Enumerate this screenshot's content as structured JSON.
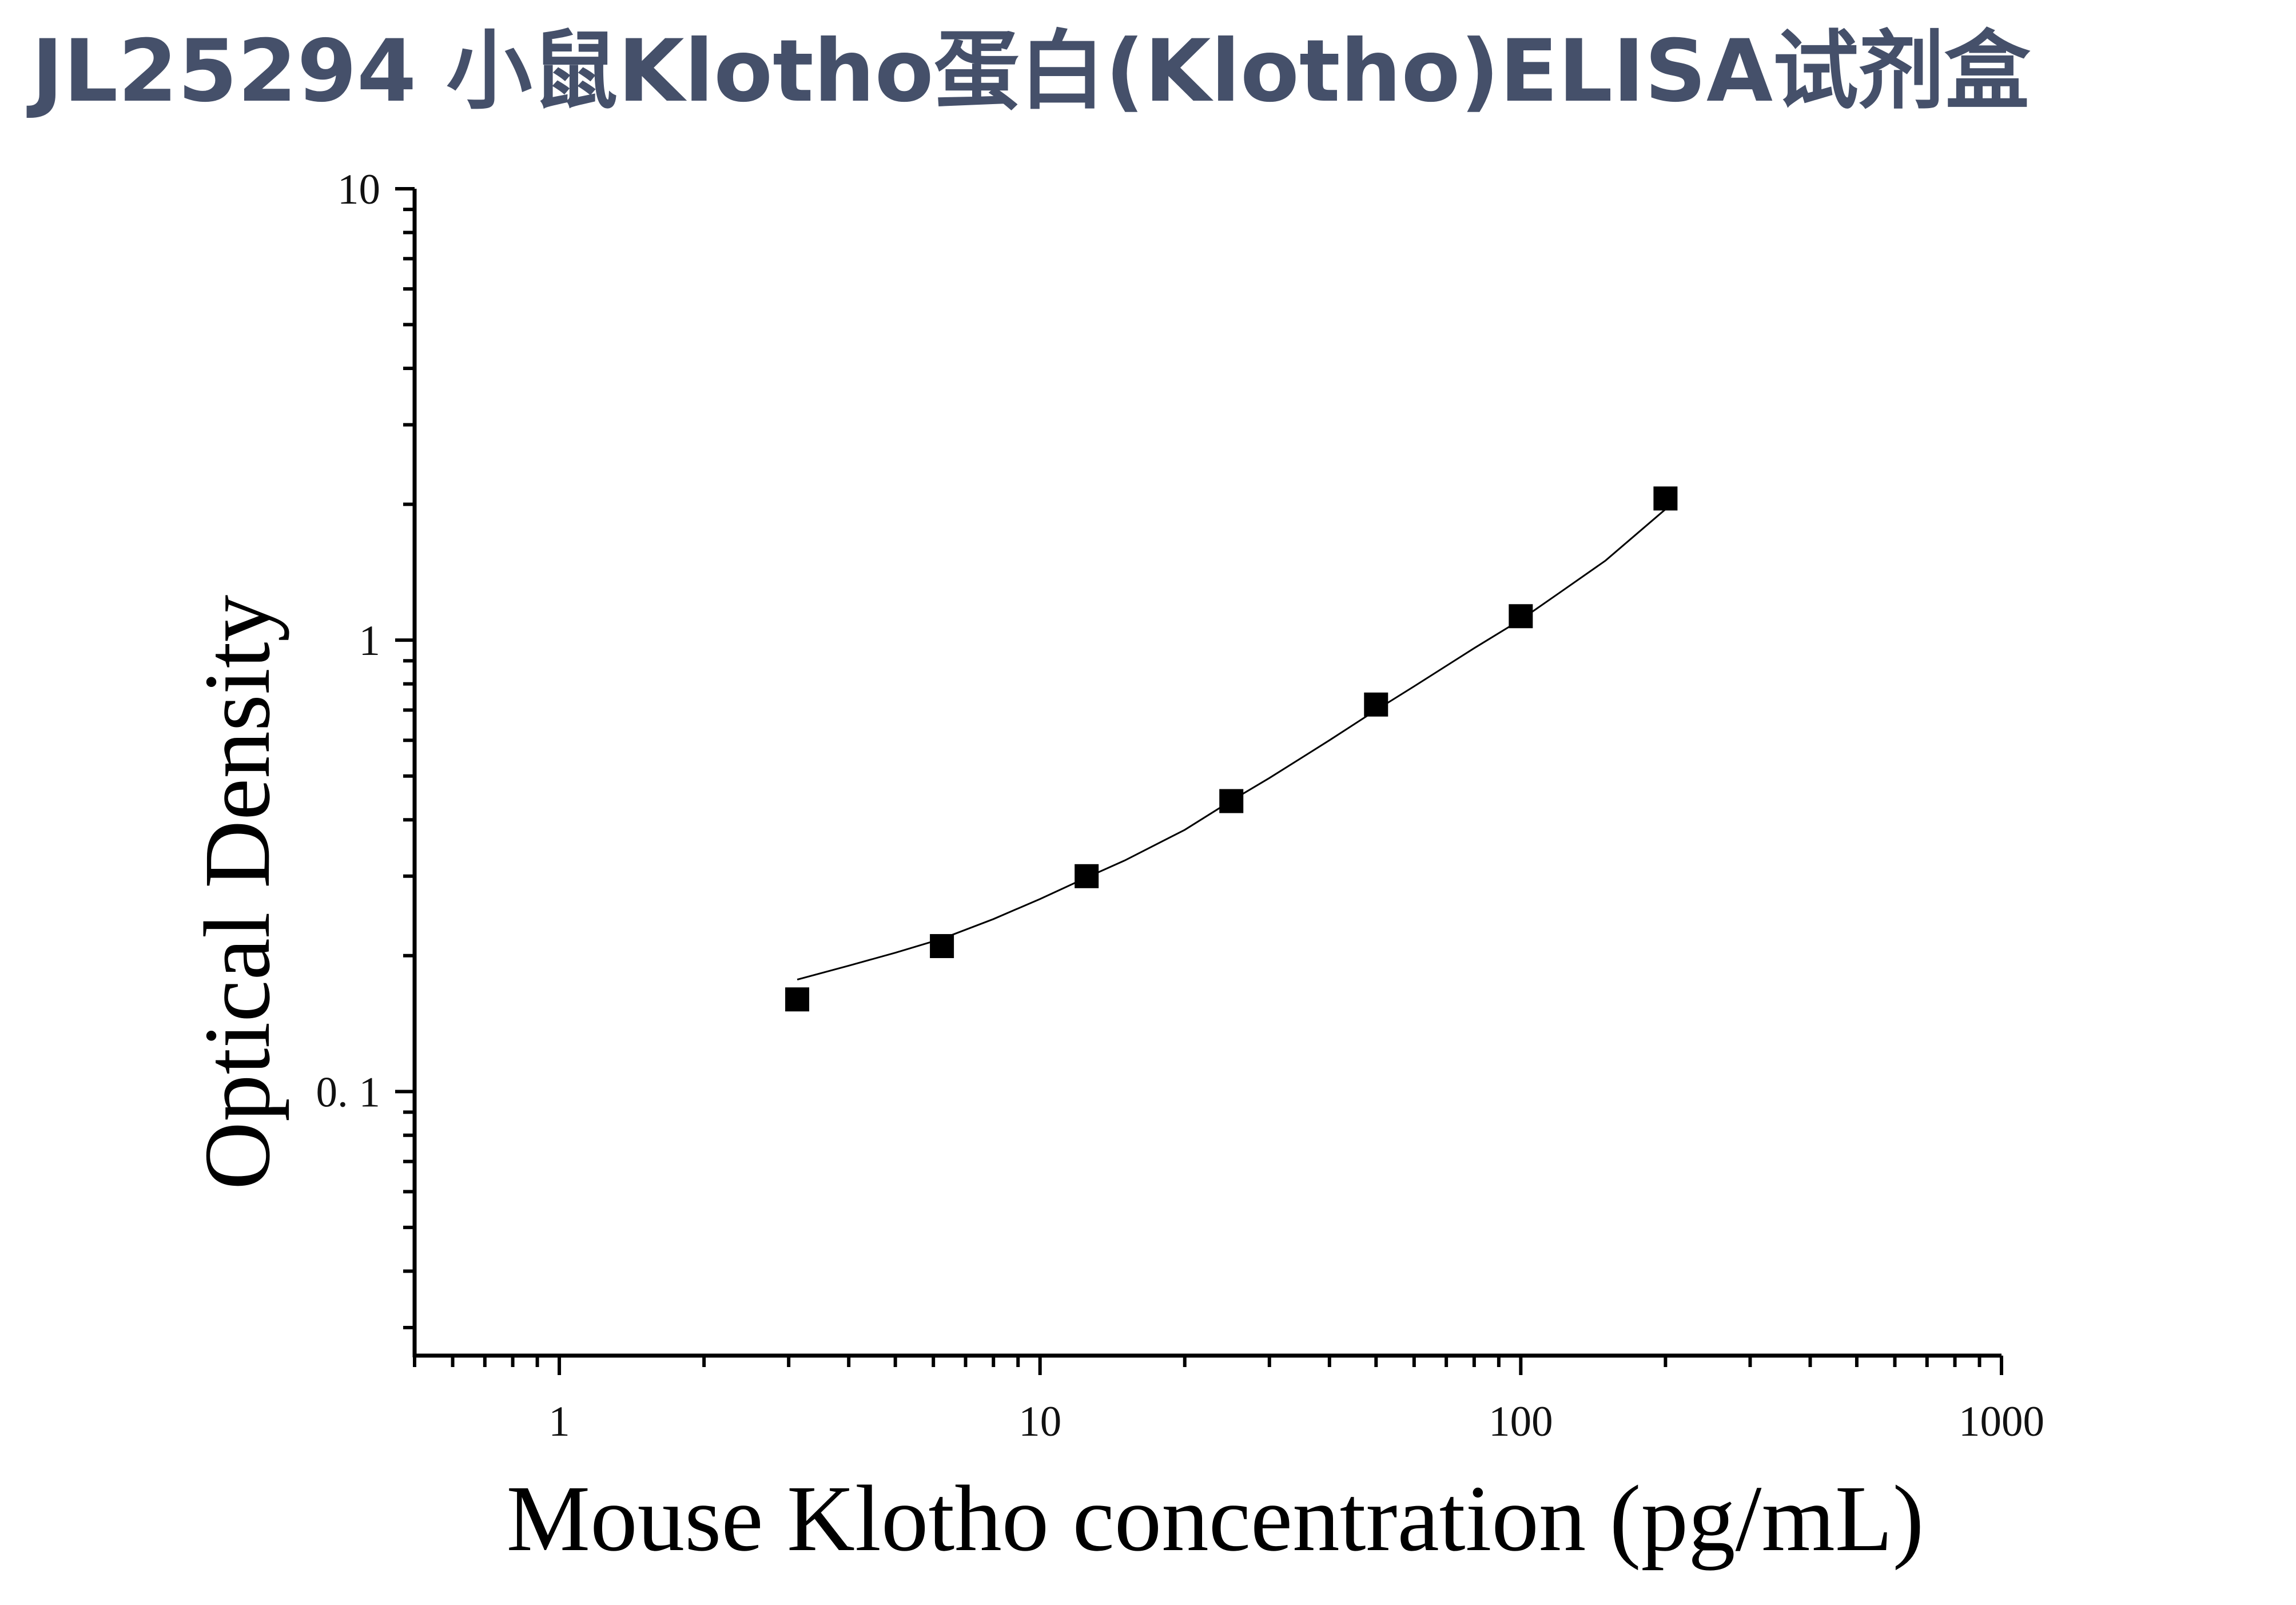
{
  "chart_data": {
    "type": "scatter",
    "title": "JL25294 小鼠Klotho蛋白(Klotho)ELISA试剂盒",
    "xlabel": "Mouse Klotho concentration (pg/mL)",
    "ylabel": "Optical Density",
    "xscale": "log",
    "yscale": "log",
    "xlim": [
      0.5,
      1000
    ],
    "ylim": [
      0.026,
      10
    ],
    "x_ticks": [
      {
        "value": 1,
        "label": "1"
      },
      {
        "value": 10,
        "label": "10"
      },
      {
        "value": 100,
        "label": "100"
      },
      {
        "value": 1000,
        "label": "1000"
      }
    ],
    "y_ticks": [
      {
        "value": 0.1,
        "label": "0. 1"
      },
      {
        "value": 1,
        "label": "1"
      },
      {
        "value": 10,
        "label": "10"
      }
    ],
    "grid": false,
    "series": [
      {
        "marker": "square",
        "color": "#000000",
        "x": [
          3.125,
          6.25,
          12.5,
          25,
          50,
          100,
          200
        ],
        "y": [
          0.16,
          0.21,
          0.3,
          0.44,
          0.72,
          1.13,
          2.06
        ]
      }
    ],
    "fit_curve": {
      "color": "#000000",
      "x": [
        3.125,
        4,
        5,
        6.25,
        8,
        10,
        12.5,
        15,
        20,
        25,
        30,
        40,
        50,
        60,
        80,
        100,
        120,
        150,
        200
      ],
      "y": [
        0.177,
        0.19,
        0.203,
        0.218,
        0.241,
        0.267,
        0.298,
        0.325,
        0.38,
        0.441,
        0.495,
        0.6,
        0.7,
        0.79,
        0.96,
        1.11,
        1.27,
        1.5,
        1.95
      ]
    }
  }
}
